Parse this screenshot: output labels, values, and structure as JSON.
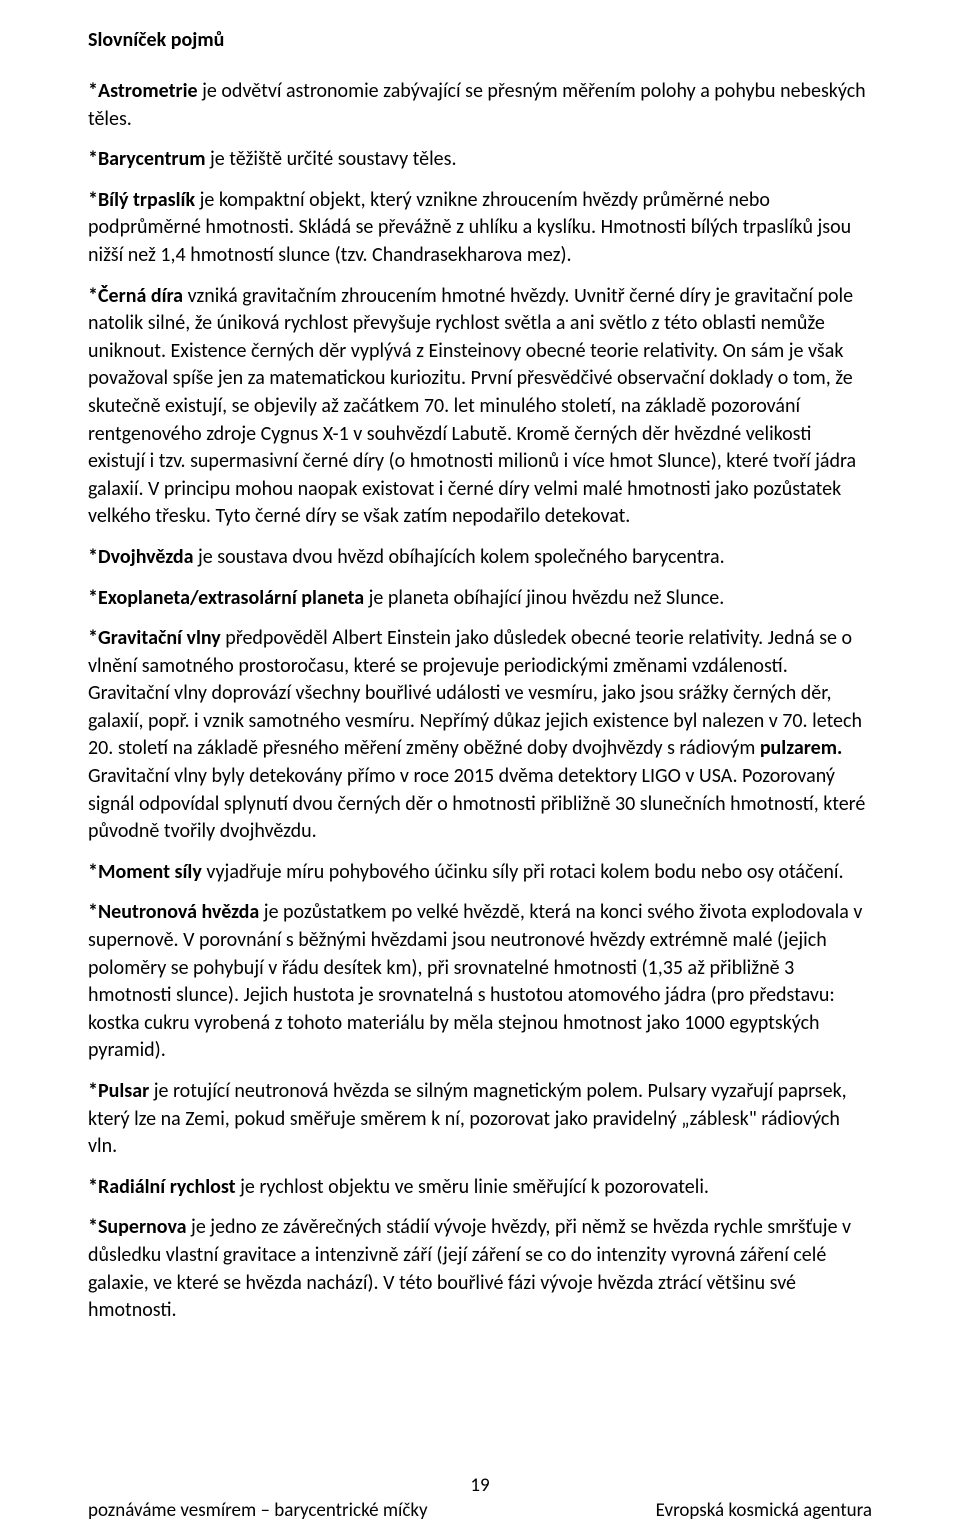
{
  "heading": "Slovníček pojmů",
  "entries": [
    {
      "term": "*Astrometrie",
      "body": " je odvětví astronomie zabývající se přesným měřením polohy a pohybu nebeských těles."
    },
    {
      "term": "*Barycentrum",
      "body": " je těžiště určité soustavy těles."
    },
    {
      "term": "*Bílý trpaslík",
      "body": " je kompaktní objekt, který vznikne zhroucením hvězdy průměrné nebo podprůměrné hmotnosti. Skládá se převážně z uhlíku a kyslíku. Hmotnosti bílých trpaslíků jsou nižší než 1,4 hmotností slunce (tzv. Chandrasekharova mez)."
    },
    {
      "term": "*Černá díra",
      "body": " vzniká gravitačním zhroucením hmotné hvězdy. Uvnitř černé díry je gravitační pole natolik silné, že úniková rychlost převyšuje rychlost světla a ani světlo z této oblasti nemůže uniknout. Existence černých děr vyplývá z Einsteinovy obecné teorie relativity. On sám je však považoval spíše jen za matematickou kuriozitu. První přesvědčivé observační doklady o tom, že skutečně existují, se objevily až začátkem 70. let minulého století, na základě pozorování rentgenového zdroje Cygnus X-1 v souhvězdí Labutě. Kromě černých děr hvězdné velikosti existují i tzv. supermasivní černé díry (o hmotnosti milionů i více hmot Slunce), které tvoří jádra galaxií. V principu mohou naopak existovat i černé díry velmi malé hmotnosti jako pozůstatek velkého třesku. Tyto černé díry se však zatím nepodařilo detekovat."
    },
    {
      "term": "*Dvojhvězda",
      "body": " je soustava dvou hvězd obíhajících kolem společného barycentra."
    },
    {
      "term": "*Exoplaneta/extrasolární planeta",
      "body": " je planeta obíhající jinou hvězdu než Slunce."
    },
    {
      "term": "*Gravitační vlny",
      "body_pre": " předpověděl Albert Einstein jako důsledek obecné teorie relativity. Jedná se o vlnění samotného prostoročasu, které se projevuje periodickými změnami vzdáleností. Gravitační vlny doprovází všechny bouřlivé události ve vesmíru, jako jsou srážky černých děr, galaxií, popř. i vznik samotného vesmíru. Nepřímý důkaz jejich existence byl nalezen v 70. letech 20. století na základě přesného měření změny oběžné doby dvojhvězdy s rádiovým ",
      "bold_inline": "pulzarem.",
      "body_post": " Gravitační vlny byly detekovány přímo v roce 2015 dvěma detektory LIGO v USA. Pozorovaný signál odpovídal splynutí dvou černých děr o hmotnosti přibližně 30 slunečních hmotností, které původně tvořily dvojhvězdu."
    },
    {
      "term": "*Moment síly",
      "body": " vyjadřuje míru pohybového účinku síly při rotaci kolem bodu nebo osy otáčení."
    },
    {
      "term": "*Neutronová hvězda",
      "body": " je pozůstatkem po velké hvězdě, která na konci svého života explodovala v supernově. V porovnání s běžnými hvězdami jsou neutronové hvězdy extrémně malé (jejich poloměry se pohybují v řádu desítek km), při srovnatelné hmotnosti (1,35 až přibližně 3 hmotnosti slunce). Jejich hustota je srovnatelná s hustotou atomového jádra (pro představu: kostka cukru vyrobená z tohoto materiálu by měla stejnou hmotnost jako 1000 egyptských pyramid)."
    },
    {
      "term": "*Pulsar",
      "body": " je rotující neutronová hvězda se silným magnetickým polem. Pulsary vyzařují paprsek, který lze na Zemi, pokud směřuje směrem k ní, pozorovat jako pravidelný „záblesk\" rádiových vln."
    },
    {
      "term": "*Radiální rychlost",
      "body": " je rychlost objektu ve směru linie směřující k pozorovateli."
    },
    {
      "term": "*Supernova",
      "body": " je jedno ze závěrečných stádií vývoje hvězdy, při němž se hvězda rychle smršťuje v důsledku vlastní gravitace a intenzivně září (její záření se co do intenzity vyrovná záření celé galaxie, ve které se hvězda nachází). V této bouřlivé fázi vývoje hvězda ztrácí většinu své hmotnosti."
    }
  ],
  "footer": {
    "page_number": "19",
    "left": "poznáváme vesmírem – barycentrické míčky",
    "right": "Evropská kosmická agentura"
  }
}
